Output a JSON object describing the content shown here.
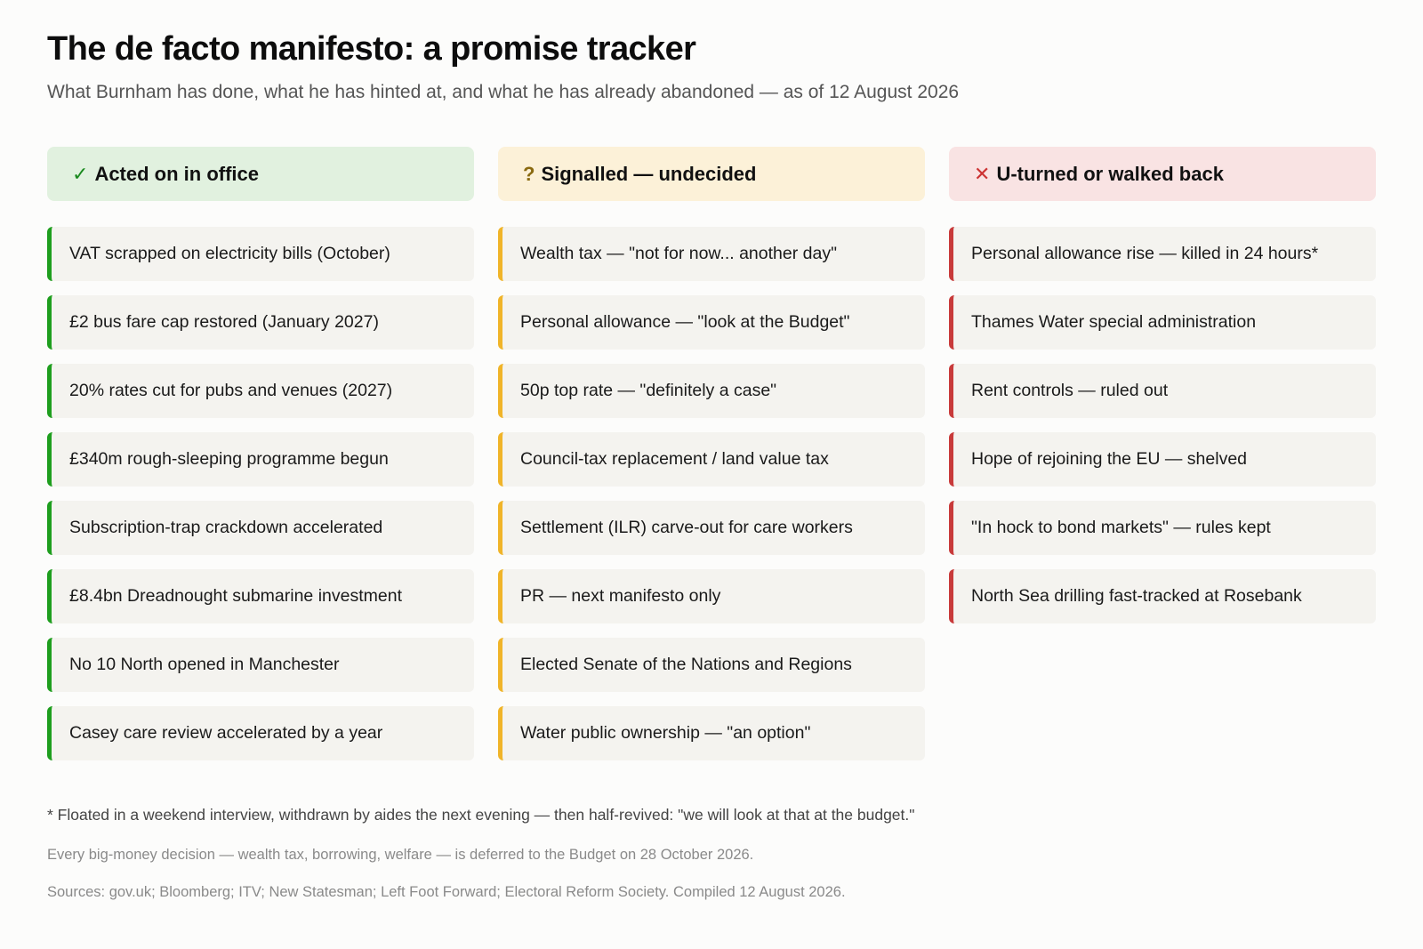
{
  "header": {
    "title": "The de facto manifesto: a promise tracker",
    "subtitle": "What Burnham has done, what he has hinted at, and what he has already abandoned — as of 12 August 2026"
  },
  "columns": [
    {
      "icon": "✓",
      "icon_name": "checkmark-icon",
      "title": "Acted on in office",
      "accent_color": "#1e9e1e",
      "header_bg": "#e1f1df",
      "items": [
        "VAT scrapped on electricity bills (October)",
        "£2 bus fare cap restored (January 2027)",
        "20% rates cut for pubs and venues (2027)",
        "£340m rough-sleeping programme begun",
        "Subscription-trap crackdown accelerated",
        "£8.4bn Dreadnought submarine investment",
        "No 10 North opened in Manchester",
        "Casey care review accelerated by a year"
      ]
    },
    {
      "icon": "?",
      "icon_name": "question-mark-icon",
      "title": "Signalled — undecided",
      "accent_color": "#f0b429",
      "header_bg": "#fcf1d8",
      "items": [
        "Wealth tax — \"not for now... another day\"",
        "Personal allowance — \"look at the Budget\"",
        "50p top rate — \"definitely a case\"",
        "Council-tax replacement / land value tax",
        "Settlement (ILR) carve-out for care workers",
        "PR — next manifesto only",
        "Elected Senate of the Nations and Regions",
        "Water public ownership — \"an option\""
      ]
    },
    {
      "icon": "✕",
      "icon_name": "cross-icon",
      "title": "U-turned or walked back",
      "accent_color": "#c83a3a",
      "header_bg": "#f9e3e3",
      "items": [
        "Personal allowance rise — killed in 24 hours*",
        "Thames Water special administration",
        "Rent controls — ruled out",
        "Hope of rejoining the EU — shelved",
        "\"In hock to bond markets\" — rules kept",
        "North Sea drilling fast-tracked at Rosebank"
      ]
    }
  ],
  "footer": {
    "footnote": "* Floated in a weekend interview, withdrawn by aides the next evening — then half-revived: \"we will look at that at the budget.\"",
    "note": "Every big-money decision — wealth tax, borrowing, welfare — is deferred to the Budget on 28 October 2026.",
    "sources": "Sources: gov.uk; Bloomberg; ITV; New Statesman; Left Foot Forward; Electoral Reform Society. Compiled 12 August 2026."
  }
}
